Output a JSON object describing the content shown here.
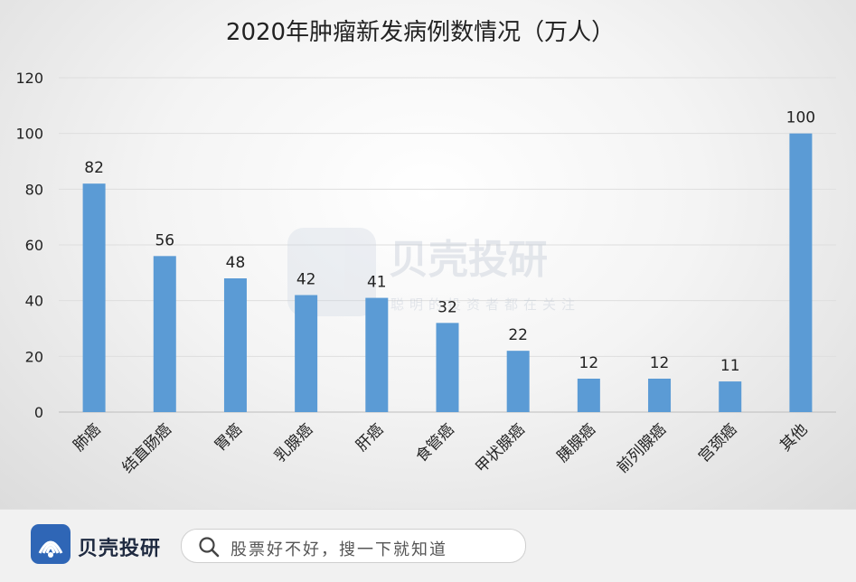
{
  "chart_data": {
    "type": "bar",
    "title": "2020年肿瘤新发病例数情况（万人）",
    "categories": [
      "肺癌",
      "结直肠癌",
      "胃癌",
      "乳腺癌",
      "肝癌",
      "食管癌",
      "甲状腺癌",
      "胰腺癌",
      "前列腺癌",
      "宫颈癌",
      "其他"
    ],
    "values": [
      82,
      56,
      48,
      42,
      41,
      32,
      22,
      12,
      12,
      11,
      100
    ],
    "data_labels": [
      "82",
      "56",
      "48",
      "42",
      "41",
      "32",
      "22",
      "12",
      "12",
      "11",
      "100"
    ],
    "yticks": [
      "0",
      "20",
      "40",
      "60",
      "80",
      "100",
      "120"
    ],
    "ylim": [
      0,
      120
    ],
    "bar_color": "#5b9bd5",
    "grid": true,
    "xlabel": "",
    "ylabel": ""
  },
  "watermark": {
    "brand": "贝壳投研",
    "tagline": "聪明的投资者都在关注"
  },
  "footer": {
    "brand": "贝壳投研",
    "search_placeholder": "股票好不好，搜一下就知道",
    "logo_icon": "shell-logo-icon",
    "search_icon": "search-icon",
    "logo_color": "#2f66b6"
  }
}
